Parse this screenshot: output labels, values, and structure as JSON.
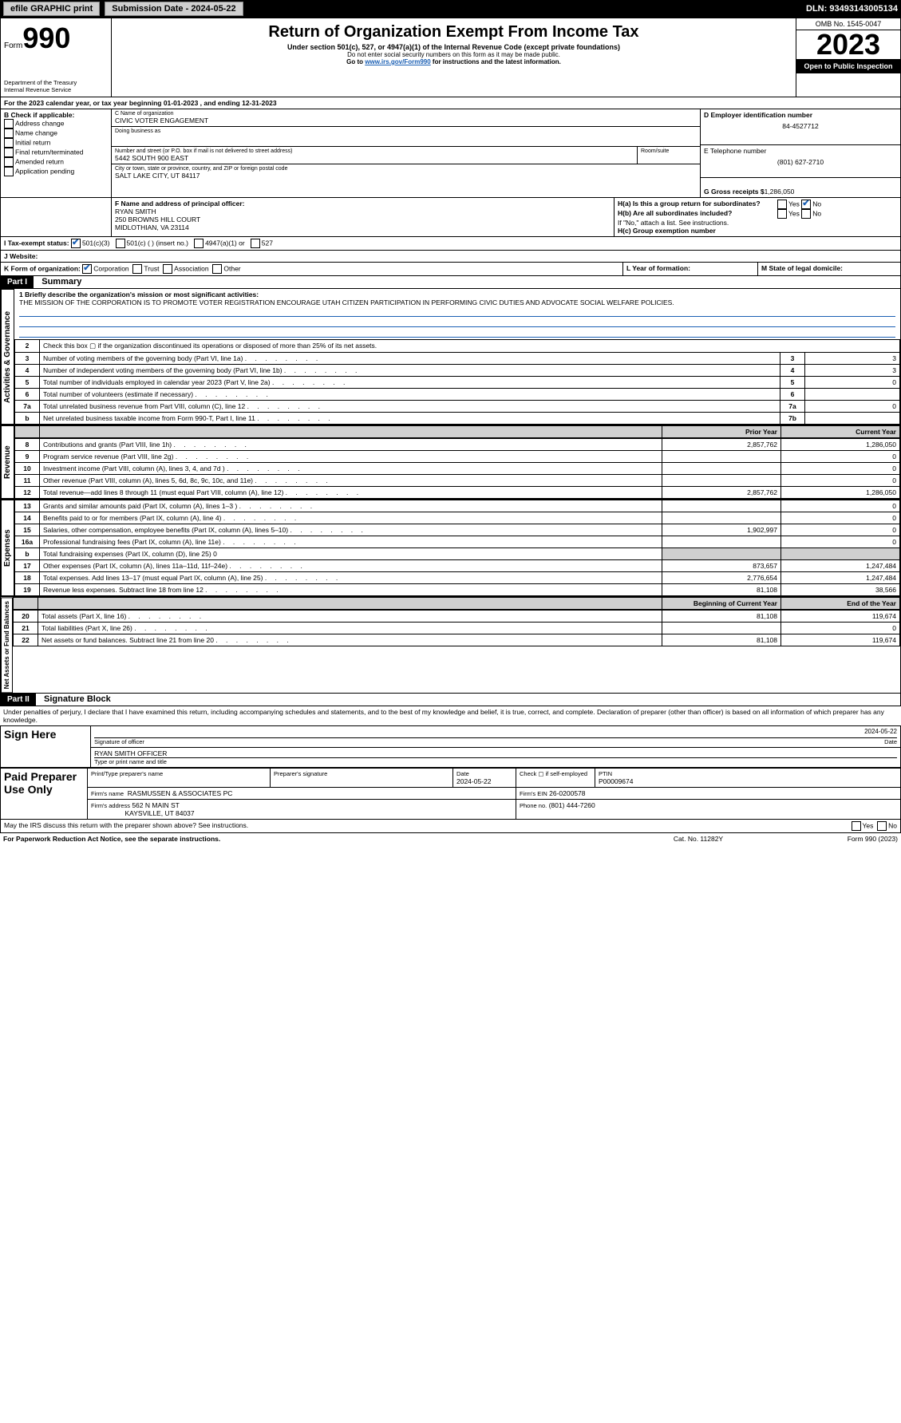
{
  "topbar": {
    "efile": "efile GRAPHIC print",
    "submission": "Submission Date - 2024-05-22",
    "dln": "DLN: 93493143005134"
  },
  "header": {
    "form_label": "Form",
    "form_num": "990",
    "dept": "Department of the Treasury",
    "irs": "Internal Revenue Service",
    "title": "Return of Organization Exempt From Income Tax",
    "sub1": "Under section 501(c), 527, or 4947(a)(1) of the Internal Revenue Code (except private foundations)",
    "sub2": "Do not enter social security numbers on this form as it may be made public.",
    "sub3": "Go to ",
    "link": "www.irs.gov/Form990",
    "sub3b": " for instructions and the latest information.",
    "omb": "OMB No. 1545-0047",
    "year": "2023",
    "open": "Open to Public Inspection"
  },
  "lineA": {
    "text": "For the 2023 calendar year, or tax year beginning 01-01-2023   , and ending 12-31-2023"
  },
  "boxB": {
    "title": "B Check if applicable:",
    "opts": [
      "Address change",
      "Name change",
      "Initial return",
      "Final return/terminated",
      "Amended return",
      "Application pending"
    ]
  },
  "boxC": {
    "name_label": "C Name of organization",
    "name": "CIVIC VOTER ENGAGEMENT",
    "dba_label": "Doing business as",
    "dba": "",
    "addr_label": "Number and street (or P.O. box if mail is not delivered to street address)",
    "addr": "5442 SOUTH 900 EAST",
    "room_label": "Room/suite",
    "city_label": "City or town, state or province, country, and ZIP or foreign postal code",
    "city": "SALT LAKE CITY, UT  84117"
  },
  "boxD": {
    "label": "D Employer identification number",
    "val": "84-4527712"
  },
  "boxE": {
    "label": "E Telephone number",
    "val": "(801) 627-2710"
  },
  "boxG": {
    "label": "G Gross receipts $",
    "val": "1,286,050"
  },
  "boxF": {
    "label": "F  Name and address of principal officer:",
    "name": "RYAN SMITH",
    "addr1": "250 BROWNS HILL COURT",
    "addr2": "MIDLOTHIAN, VA  23114"
  },
  "boxH": {
    "ha": "H(a)  Is this a group return for subordinates?",
    "hb": "H(b)  Are all subordinates included?",
    "note": "If \"No,\" attach a list. See instructions.",
    "hc": "H(c)  Group exemption number"
  },
  "boxI": {
    "label": "I   Tax-exempt status:",
    "opts": [
      "501(c)(3)",
      "501(c) (  ) (insert no.)",
      "4947(a)(1) or",
      "527"
    ]
  },
  "boxJ": {
    "label": "J   Website:"
  },
  "boxK": {
    "label": "K Form of organization:",
    "opts": [
      "Corporation",
      "Trust",
      "Association",
      "Other"
    ]
  },
  "boxL": {
    "label": "L Year of formation:"
  },
  "boxM": {
    "label": "M State of legal domicile:"
  },
  "part1": {
    "title": "Part I",
    "sub": "Summary",
    "line1": "1  Briefly describe the organization's mission or most significant activities:",
    "mission": "THE MISSION OF THE CORPORATION IS TO PROMOTE VOTER REGISTRATION ENCOURAGE UTAH CITIZEN PARTICIPATION IN PERFORMING CIVIC DUTIES AND ADVOCATE SOCIAL WELFARE POLICIES.",
    "sections": {
      "gov": "Activities & Governance",
      "rev": "Revenue",
      "exp": "Expenses",
      "net": "Net Assets or Fund Balances"
    },
    "rows_gov": [
      {
        "n": "2",
        "t": "Check this box   ▢   if the organization discontinued its operations or disposed of more than 25% of its net assets."
      },
      {
        "n": "3",
        "t": "Number of voting members of the governing body (Part VI, line 1a)",
        "box": "3",
        "v": "3"
      },
      {
        "n": "4",
        "t": "Number of independent voting members of the governing body (Part VI, line 1b)",
        "box": "4",
        "v": "3"
      },
      {
        "n": "5",
        "t": "Total number of individuals employed in calendar year 2023 (Part V, line 2a)",
        "box": "5",
        "v": "0"
      },
      {
        "n": "6",
        "t": "Total number of volunteers (estimate if necessary)",
        "box": "6",
        "v": ""
      },
      {
        "n": "7a",
        "t": "Total unrelated business revenue from Part VIII, column (C), line 12",
        "box": "7a",
        "v": "0"
      },
      {
        "n": "b",
        "t": "Net unrelated business taxable income from Form 990-T, Part I, line 11",
        "box": "7b",
        "v": ""
      }
    ],
    "head_prior": "Prior Year",
    "head_curr": "Current Year",
    "rows_rev": [
      {
        "n": "8",
        "t": "Contributions and grants (Part VIII, line 1h)",
        "p": "2,857,762",
        "c": "1,286,050"
      },
      {
        "n": "9",
        "t": "Program service revenue (Part VIII, line 2g)",
        "p": "",
        "c": "0"
      },
      {
        "n": "10",
        "t": "Investment income (Part VIII, column (A), lines 3, 4, and 7d )",
        "p": "",
        "c": "0"
      },
      {
        "n": "11",
        "t": "Other revenue (Part VIII, column (A), lines 5, 6d, 8c, 9c, 10c, and 11e)",
        "p": "",
        "c": "0"
      },
      {
        "n": "12",
        "t": "Total revenue—add lines 8 through 11 (must equal Part VIII, column (A), line 12)",
        "p": "2,857,762",
        "c": "1,286,050"
      }
    ],
    "rows_exp": [
      {
        "n": "13",
        "t": "Grants and similar amounts paid (Part IX, column (A), lines 1–3 )",
        "p": "",
        "c": "0"
      },
      {
        "n": "14",
        "t": "Benefits paid to or for members (Part IX, column (A), line 4)",
        "p": "",
        "c": "0"
      },
      {
        "n": "15",
        "t": "Salaries, other compensation, employee benefits (Part IX, column (A), lines 5–10)",
        "p": "1,902,997",
        "c": "0"
      },
      {
        "n": "16a",
        "t": "Professional fundraising fees (Part IX, column (A), line 11e)",
        "p": "",
        "c": "0"
      },
      {
        "n": "b",
        "t": "Total fundraising expenses (Part IX, column (D), line 25) 0",
        "grey": true
      },
      {
        "n": "17",
        "t": "Other expenses (Part IX, column (A), lines 11a–11d, 11f–24e)",
        "p": "873,657",
        "c": "1,247,484"
      },
      {
        "n": "18",
        "t": "Total expenses. Add lines 13–17 (must equal Part IX, column (A), line 25)",
        "p": "2,776,654",
        "c": "1,247,484"
      },
      {
        "n": "19",
        "t": "Revenue less expenses. Subtract line 18 from line 12",
        "p": "81,108",
        "c": "38,566"
      }
    ],
    "head_beg": "Beginning of Current Year",
    "head_end": "End of the Year",
    "rows_net": [
      {
        "n": "20",
        "t": "Total assets (Part X, line 16)",
        "p": "81,108",
        "c": "119,674"
      },
      {
        "n": "21",
        "t": "Total liabilities (Part X, line 26)",
        "p": "",
        "c": "0"
      },
      {
        "n": "22",
        "t": "Net assets or fund balances. Subtract line 21 from line 20",
        "p": "81,108",
        "c": "119,674"
      }
    ]
  },
  "part2": {
    "title": "Part II",
    "sub": "Signature Block",
    "decl": "Under penalties of perjury, I declare that I have examined this return, including accompanying schedules and statements, and to the best of my knowledge and belief, it is true, correct, and complete. Declaration of preparer (other than officer) is based on all information of which preparer has any knowledge.",
    "sign_here": "Sign Here",
    "sig_of": "Signature of officer",
    "date": "Date",
    "sig_date": "2024-05-22",
    "officer": "RYAN SMITH  OFFICER",
    "type_label": "Type or print name and title",
    "paid": "Paid Preparer Use Only",
    "prep_name_label": "Print/Type preparer's name",
    "prep_sig_label": "Preparer's signature",
    "prep_date": "2024-05-22",
    "check_self": "Check ▢ if self-employed",
    "ptin_label": "PTIN",
    "ptin": "P00009674",
    "firm_name_label": "Firm's name",
    "firm_name": "RASMUSSEN & ASSOCIATES PC",
    "firm_ein_label": "Firm's EIN",
    "firm_ein": "26-0200578",
    "firm_addr_label": "Firm's address",
    "firm_addr1": "562 N MAIN ST",
    "firm_addr2": "KAYSVILLE, UT  84037",
    "phone_label": "Phone no.",
    "phone": "(801) 444-7260",
    "discuss": "May the IRS discuss this return with the preparer shown above? See instructions.",
    "footer1": "For Paperwork Reduction Act Notice, see the separate instructions.",
    "footer2": "Cat. No. 11282Y",
    "footer3": "Form 990 (2023)"
  }
}
